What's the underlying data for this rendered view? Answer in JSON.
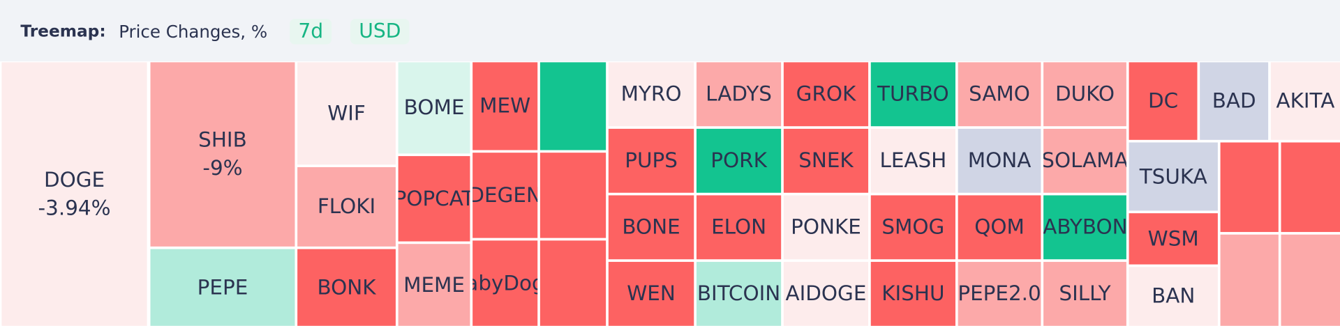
{
  "header": {
    "title": "Treemap:",
    "metric": "Price Changes, %",
    "period": "7d",
    "currency": "USD"
  },
  "tiles": [
    {
      "label": "DOGE",
      "change": "-3.94%"
    },
    {
      "label": "SHIB",
      "change": "-9%"
    },
    {
      "label": "PEPE"
    },
    {
      "label": "WIF"
    },
    {
      "label": "FLOKI"
    },
    {
      "label": "BONK"
    },
    {
      "label": "BOME"
    },
    {
      "label": "POPCAT"
    },
    {
      "label": "MEME"
    },
    {
      "label": "MEW"
    },
    {
      "label": "DEGEN"
    },
    {
      "label": "babyDoge"
    },
    {
      "label": "MYRO"
    },
    {
      "label": "PUPS"
    },
    {
      "label": "BONE"
    },
    {
      "label": "WEN"
    },
    {
      "label": "LADYS"
    },
    {
      "label": "PORK"
    },
    {
      "label": "ELON"
    },
    {
      "label": "BITCOIN"
    },
    {
      "label": "GROK"
    },
    {
      "label": "SNEK"
    },
    {
      "label": "PONKE"
    },
    {
      "label": "AIDOGE"
    },
    {
      "label": "TURBO"
    },
    {
      "label": "LEASH"
    },
    {
      "label": "SMOG"
    },
    {
      "label": "KISHU"
    },
    {
      "label": "SAMO"
    },
    {
      "label": "MONA"
    },
    {
      "label": "QOM"
    },
    {
      "label": "PEPE2.0"
    },
    {
      "label": "DUKO"
    },
    {
      "label": "SOLAMA"
    },
    {
      "label": "BABYBONK"
    },
    {
      "label": "SILLY"
    },
    {
      "label": "DC"
    },
    {
      "label": "BAD"
    },
    {
      "label": "AKITA"
    },
    {
      "label": "TSUKA"
    },
    {
      "label": "WSM"
    },
    {
      "label": "BAN"
    }
  ]
}
